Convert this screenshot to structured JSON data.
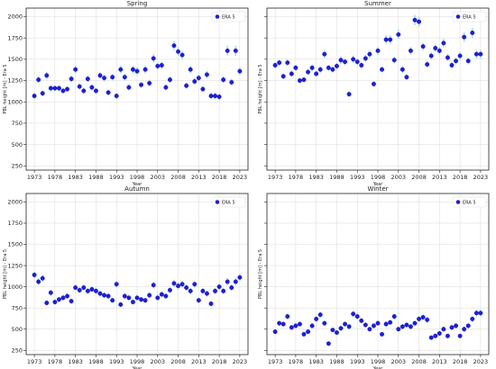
{
  "chart_data": [
    {
      "type": "scatter",
      "title": "Spring",
      "xlabel": "Year",
      "ylabel": "PBL height [m] - Era 5",
      "legend": "ERA 5",
      "legend_position": "top-right",
      "grid": true,
      "xlim": [
        1971,
        2025
      ],
      "ylim": [
        200,
        2100
      ],
      "xticks": [
        1973,
        1978,
        1983,
        1988,
        1993,
        1998,
        2003,
        2008,
        2013,
        2018,
        2023
      ],
      "yticks": [
        250,
        500,
        750,
        1000,
        1250,
        1500,
        1750,
        2000
      ],
      "marker_color": "#1f1fd6",
      "errorbar_color": "#9fd8f2",
      "x": [
        1973,
        1974,
        1975,
        1976,
        1977,
        1978,
        1979,
        1980,
        1981,
        1982,
        1983,
        1984,
        1985,
        1986,
        1987,
        1988,
        1989,
        1990,
        1991,
        1992,
        1993,
        1994,
        1995,
        1996,
        1997,
        1998,
        1999,
        2000,
        2001,
        2002,
        2003,
        2004,
        2005,
        2006,
        2007,
        2008,
        2009,
        2010,
        2011,
        2012,
        2013,
        2014,
        2015,
        2016,
        2017,
        2018,
        2019,
        2020,
        2021,
        2022,
        2023
      ],
      "y": [
        1070,
        1260,
        1100,
        1310,
        1160,
        1160,
        1160,
        1130,
        1150,
        1270,
        1380,
        1180,
        1130,
        1270,
        1170,
        1130,
        1310,
        1280,
        1110,
        1290,
        1070,
        1380,
        1290,
        1170,
        1380,
        1360,
        1200,
        1380,
        1220,
        1510,
        1420,
        1430,
        1170,
        1260,
        1660,
        1590,
        1550,
        1190,
        1380,
        1240,
        1280,
        1150,
        1320,
        1070,
        1070,
        1060,
        1260,
        1600,
        1230,
        1600,
        1360
      ],
      "error": [
        30,
        40,
        35,
        40,
        35,
        30,
        35,
        30,
        35,
        40,
        45,
        35,
        35,
        40,
        35,
        35,
        40,
        40,
        35,
        40,
        35,
        45,
        40,
        35,
        45,
        45,
        35,
        45,
        40,
        50,
        45,
        45,
        35,
        40,
        55,
        50,
        50,
        35,
        45,
        40,
        40,
        35,
        45,
        40,
        40,
        40,
        40,
        60,
        40,
        60,
        45
      ]
    },
    {
      "type": "scatter",
      "title": "Summer",
      "xlabel": "Year",
      "ylabel": "PBL height [m] - Era 5",
      "legend": "ERA 5",
      "legend_position": "top-right",
      "grid": true,
      "xlim": [
        1971,
        2025
      ],
      "ylim": [
        200,
        2100
      ],
      "xticks": [
        1973,
        1978,
        1983,
        1988,
        1993,
        1998,
        2003,
        2008,
        2013,
        2018,
        2023
      ],
      "yticks": [
        250,
        500,
        750,
        1000,
        1250,
        1500,
        1750,
        2000
      ],
      "marker_color": "#1f1fd6",
      "errorbar_color": "#9fd8f2",
      "x": [
        1973,
        1974,
        1975,
        1976,
        1977,
        1978,
        1979,
        1980,
        1981,
        1982,
        1983,
        1984,
        1985,
        1986,
        1987,
        1988,
        1989,
        1990,
        1991,
        1992,
        1993,
        1994,
        1995,
        1996,
        1997,
        1998,
        1999,
        2000,
        2001,
        2002,
        2003,
        2004,
        2005,
        2006,
        2007,
        2008,
        2009,
        2010,
        2011,
        2012,
        2013,
        2014,
        2015,
        2016,
        2017,
        2018,
        2019,
        2020,
        2021,
        2022,
        2023
      ],
      "y": [
        1430,
        1460,
        1300,
        1460,
        1330,
        1400,
        1250,
        1260,
        1350,
        1400,
        1330,
        1380,
        1560,
        1400,
        1380,
        1420,
        1490,
        1470,
        1090,
        1500,
        1470,
        1430,
        1510,
        1560,
        1210,
        1600,
        1380,
        1730,
        1730,
        1490,
        1790,
        1380,
        1290,
        1600,
        1960,
        1940,
        1650,
        1440,
        1540,
        1630,
        1600,
        1690,
        1520,
        1430,
        1480,
        1540,
        1760,
        1480,
        1810,
        1560,
        1560
      ],
      "error": [
        35,
        40,
        35,
        40,
        35,
        35,
        30,
        30,
        35,
        40,
        35,
        35,
        45,
        35,
        35,
        40,
        45,
        40,
        30,
        45,
        40,
        40,
        45,
        45,
        35,
        45,
        35,
        50,
        50,
        40,
        55,
        40,
        35,
        45,
        60,
        55,
        45,
        40,
        45,
        45,
        45,
        50,
        45,
        40,
        40,
        45,
        55,
        40,
        60,
        50,
        50
      ]
    },
    {
      "type": "scatter",
      "title": "Autumn",
      "xlabel": "Year",
      "ylabel": "PBL height [m] - Era 5",
      "legend": "ERA 5",
      "legend_position": "top-right",
      "grid": true,
      "xlim": [
        1971,
        2025
      ],
      "ylim": [
        200,
        2100
      ],
      "xticks": [
        1973,
        1978,
        1983,
        1988,
        1993,
        1998,
        2003,
        2008,
        2013,
        2018,
        2023
      ],
      "yticks": [
        250,
        500,
        750,
        1000,
        1250,
        1500,
        1750,
        2000
      ],
      "marker_color": "#1f1fd6",
      "errorbar_color": "#9fd8f2",
      "x": [
        1973,
        1974,
        1975,
        1976,
        1977,
        1978,
        1979,
        1980,
        1981,
        1982,
        1983,
        1984,
        1985,
        1986,
        1987,
        1988,
        1989,
        1990,
        1991,
        1992,
        1993,
        1994,
        1995,
        1996,
        1997,
        1998,
        1999,
        2000,
        2001,
        2002,
        2003,
        2004,
        2005,
        2006,
        2007,
        2008,
        2009,
        2010,
        2011,
        2012,
        2013,
        2014,
        2015,
        2016,
        2017,
        2018,
        2019,
        2020,
        2021,
        2022,
        2023
      ],
      "y": [
        1140,
        1060,
        1100,
        810,
        930,
        820,
        850,
        870,
        890,
        830,
        990,
        960,
        990,
        950,
        970,
        950,
        920,
        900,
        890,
        840,
        1030,
        790,
        890,
        870,
        820,
        870,
        850,
        840,
        900,
        1020,
        870,
        910,
        890,
        960,
        1040,
        1010,
        1030,
        990,
        950,
        1030,
        840,
        950,
        920,
        800,
        950,
        1000,
        950,
        1060,
        990,
        1060,
        1110
      ],
      "error": [
        40,
        40,
        40,
        30,
        35,
        30,
        30,
        35,
        35,
        30,
        35,
        35,
        35,
        35,
        35,
        35,
        35,
        35,
        35,
        30,
        40,
        30,
        35,
        35,
        30,
        35,
        30,
        30,
        35,
        40,
        35,
        35,
        35,
        35,
        40,
        40,
        40,
        35,
        35,
        40,
        30,
        35,
        35,
        30,
        35,
        40,
        35,
        45,
        40,
        45,
        45
      ]
    },
    {
      "type": "scatter",
      "title": "Winter",
      "xlabel": "Year",
      "ylabel": "PBL height [m] - Era 5",
      "legend": "ERA 5",
      "legend_position": "top-right",
      "grid": true,
      "xlim": [
        1971,
        2025
      ],
      "ylim": [
        200,
        2100
      ],
      "xticks": [
        1973,
        1978,
        1983,
        1988,
        1993,
        1998,
        2003,
        2008,
        2013,
        2018,
        2023
      ],
      "yticks": [
        250,
        500,
        750,
        1000,
        1250,
        1500,
        1750,
        2000
      ],
      "marker_color": "#1f1fd6",
      "errorbar_color": "#9fd8f2",
      "x": [
        1973,
        1974,
        1975,
        1976,
        1977,
        1978,
        1979,
        1980,
        1981,
        1982,
        1983,
        1984,
        1985,
        1986,
        1987,
        1988,
        1989,
        1990,
        1991,
        1992,
        1993,
        1994,
        1995,
        1996,
        1997,
        1998,
        1999,
        2000,
        2001,
        2002,
        2003,
        2004,
        2005,
        2006,
        2007,
        2008,
        2009,
        2010,
        2011,
        2012,
        2013,
        2014,
        2015,
        2016,
        2017,
        2018,
        2019,
        2020,
        2021,
        2022,
        2023
      ],
      "y": [
        470,
        570,
        560,
        650,
        520,
        540,
        560,
        440,
        470,
        540,
        620,
        670,
        570,
        330,
        490,
        460,
        510,
        560,
        530,
        680,
        650,
        600,
        550,
        500,
        540,
        570,
        440,
        560,
        580,
        650,
        500,
        530,
        550,
        530,
        570,
        620,
        640,
        610,
        400,
        420,
        450,
        500,
        420,
        520,
        540,
        420,
        500,
        540,
        620,
        690,
        690
      ],
      "error": [
        25,
        30,
        30,
        35,
        30,
        30,
        30,
        25,
        25,
        30,
        35,
        35,
        30,
        20,
        25,
        25,
        30,
        30,
        30,
        35,
        35,
        30,
        30,
        25,
        30,
        30,
        25,
        30,
        30,
        35,
        25,
        30,
        30,
        30,
        30,
        35,
        35,
        35,
        25,
        25,
        25,
        30,
        25,
        30,
        30,
        25,
        30,
        30,
        35,
        40,
        40
      ]
    }
  ]
}
